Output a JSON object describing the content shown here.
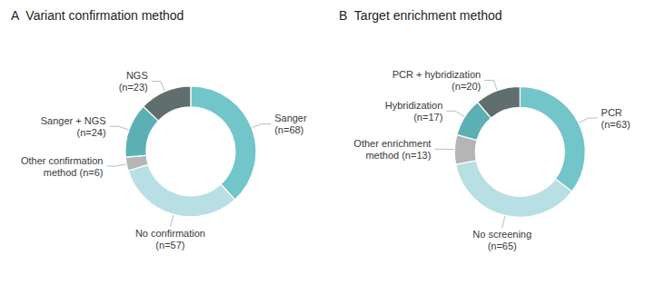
{
  "chart_data": [
    {
      "type": "donut",
      "title": "A  Variant confirmation method",
      "categories": [
        "Sanger\n(n=68)",
        "No confirmation\n(n=57)",
        "Other confirmation\nmethod (n=6)",
        "Sanger + NGS\n(n=24)",
        "NGS\n(n=23)"
      ],
      "values": [
        68,
        57,
        6,
        24,
        23
      ],
      "colors": [
        "#72c5c9",
        "#b8dfe3",
        "#b5b5b5",
        "#5cb0b4",
        "#616e6e"
      ]
    },
    {
      "type": "donut",
      "title": "B  Target enrichment method",
      "categories": [
        "PCR\n(n=63)",
        "No screening\n(n=65)",
        "Other enrichment\nmethod (n=13)",
        "Hybridization\n(n=17)",
        "PCR + hybridization\n(n=20)"
      ],
      "values": [
        63,
        65,
        13,
        17,
        20
      ],
      "colors": [
        "#72c5c9",
        "#b8dfe3",
        "#b5b5b5",
        "#5cb0b4",
        "#616e6e"
      ]
    }
  ]
}
